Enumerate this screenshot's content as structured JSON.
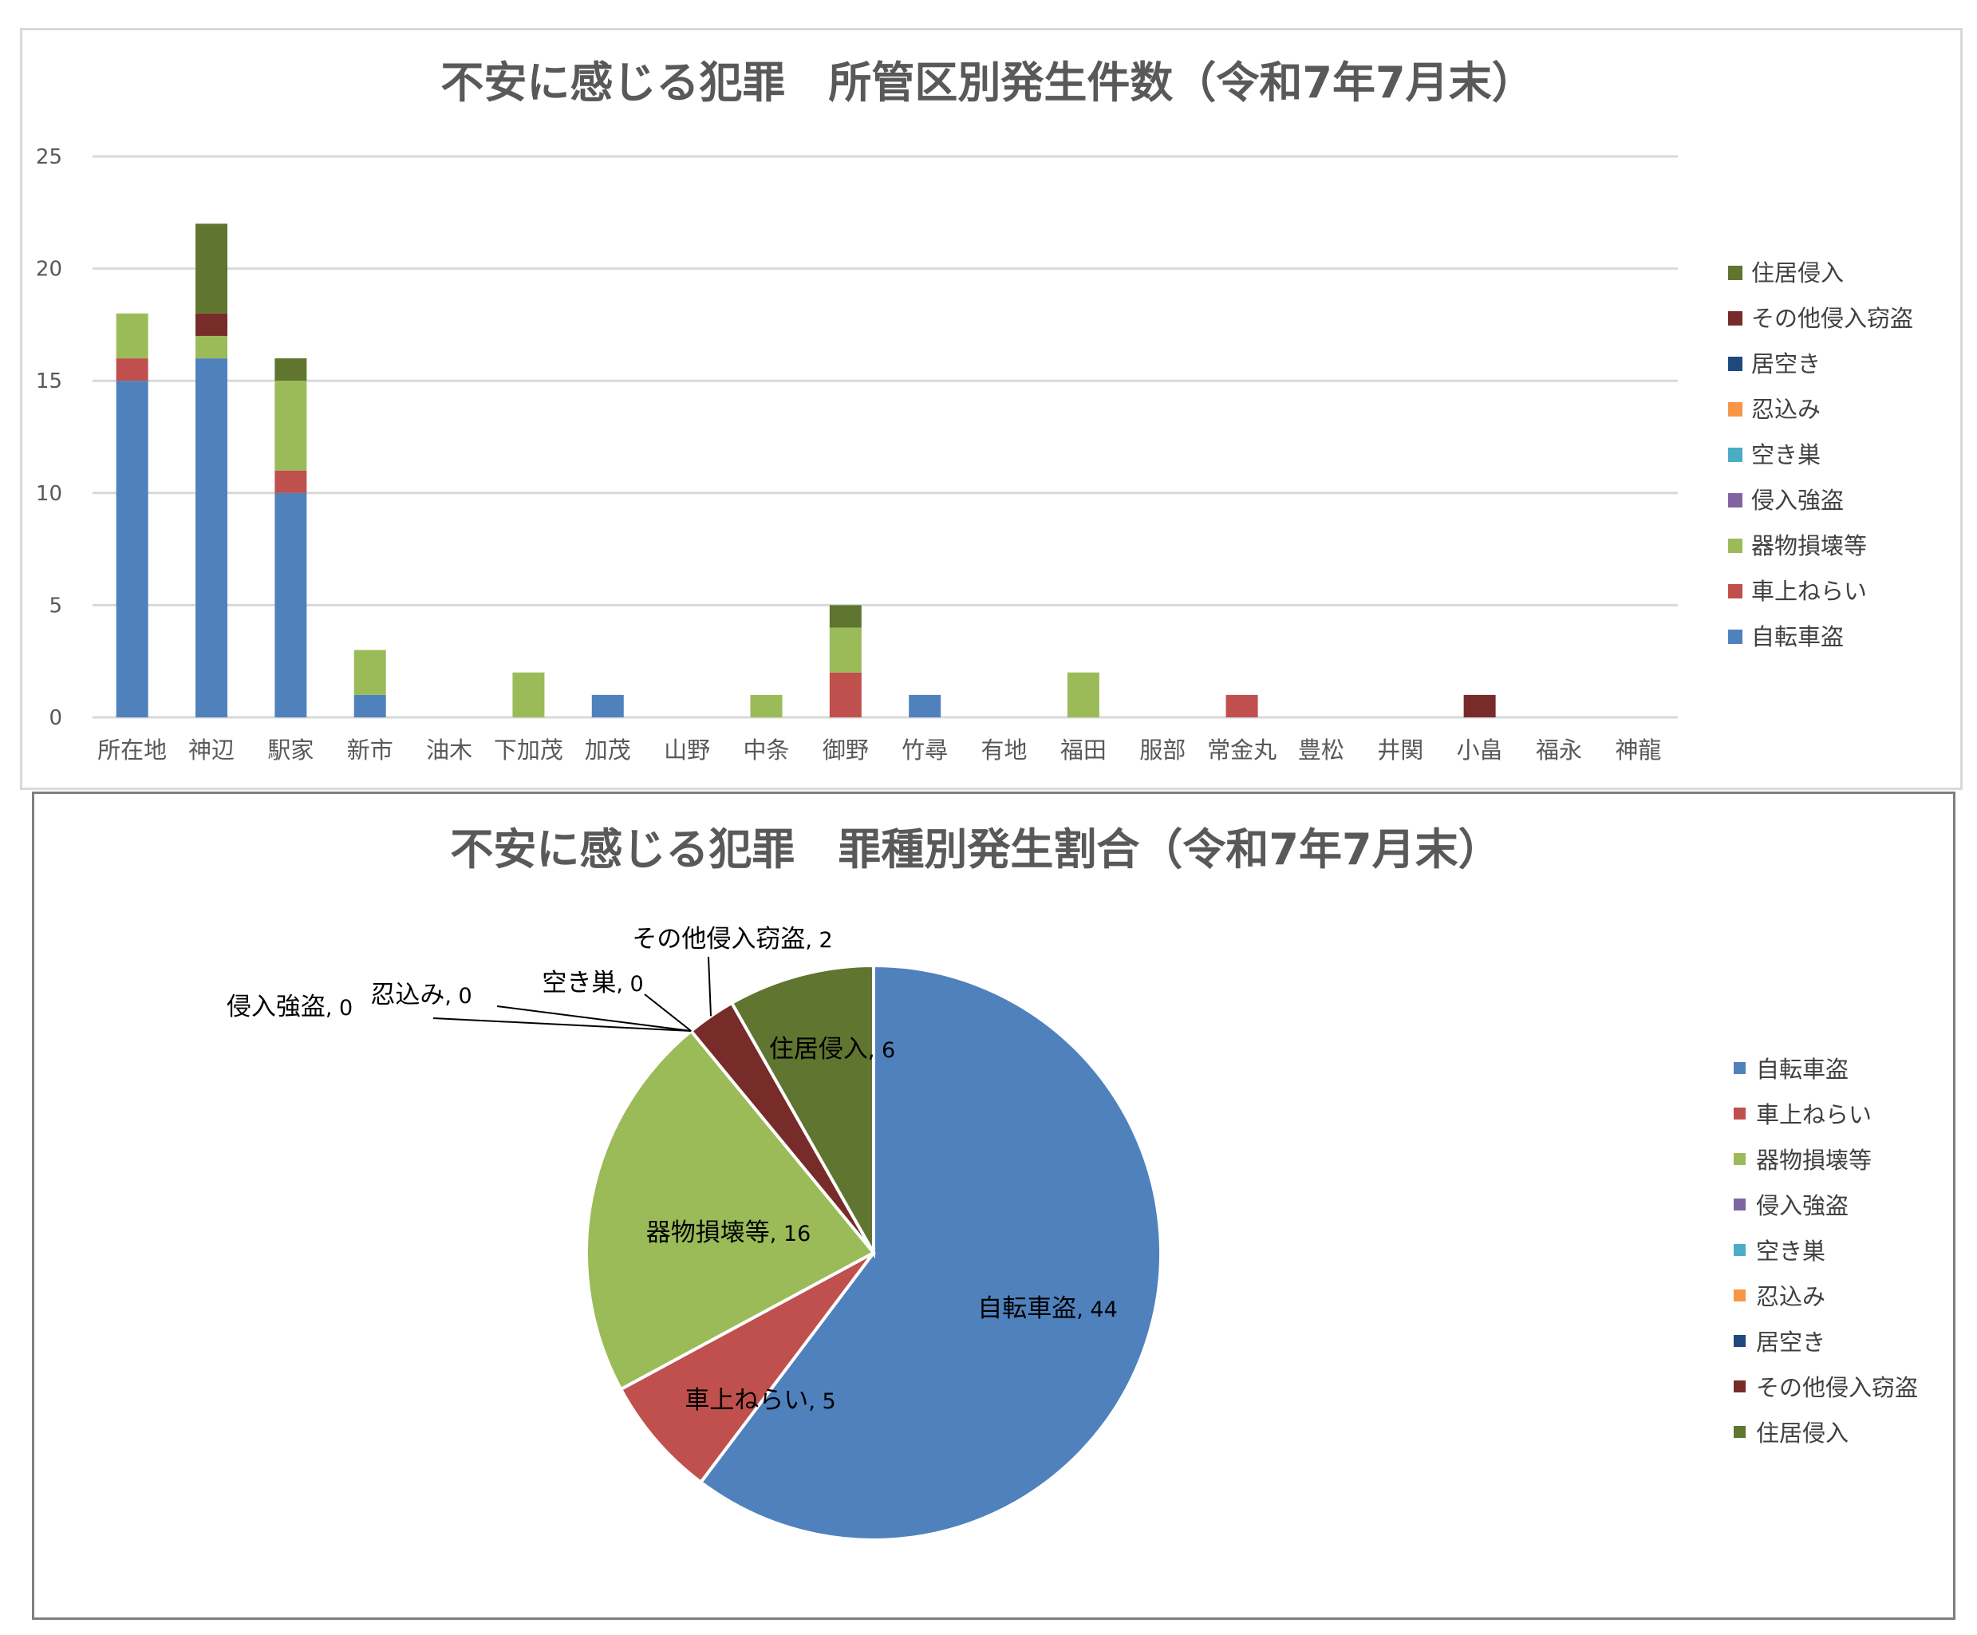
{
  "chart_data": [
    {
      "type": "bar",
      "stacked": true,
      "title": "不安に感じる犯罪　所管区別発生件数（令和7年7月末）",
      "xlabel": "",
      "ylabel": "",
      "ylim": [
        0,
        25
      ],
      "yticks": [
        0,
        5,
        10,
        15,
        20,
        25
      ],
      "grid": true,
      "legend_position": "right",
      "categories": [
        "所在地",
        "神辺",
        "駅家",
        "新市",
        "油木",
        "下加茂",
        "加茂",
        "山野",
        "中条",
        "御野",
        "竹尋",
        "有地",
        "福田",
        "服部",
        "常金丸",
        "豊松",
        "井関",
        "小畠",
        "福永",
        "神龍"
      ],
      "series": [
        {
          "name": "自転車盗",
          "color": "#4F81BD",
          "values": [
            15,
            16,
            10,
            1,
            0,
            0,
            1,
            0,
            0,
            0,
            1,
            0,
            0,
            0,
            0,
            0,
            0,
            0,
            0,
            0
          ]
        },
        {
          "name": "車上ねらい",
          "color": "#C0504D",
          "values": [
            1,
            0,
            1,
            0,
            0,
            0,
            0,
            0,
            0,
            2,
            0,
            0,
            0,
            0,
            1,
            0,
            0,
            0,
            0,
            0
          ]
        },
        {
          "name": "器物損壊等",
          "color": "#9BBB59",
          "values": [
            2,
            1,
            4,
            2,
            0,
            2,
            0,
            0,
            1,
            2,
            0,
            0,
            2,
            0,
            0,
            0,
            0,
            0,
            0,
            0
          ]
        },
        {
          "name": "侵入強盗",
          "color": "#8064A2",
          "values": [
            0,
            0,
            0,
            0,
            0,
            0,
            0,
            0,
            0,
            0,
            0,
            0,
            0,
            0,
            0,
            0,
            0,
            0,
            0,
            0
          ]
        },
        {
          "name": "空き巣",
          "color": "#4BACC6",
          "values": [
            0,
            0,
            0,
            0,
            0,
            0,
            0,
            0,
            0,
            0,
            0,
            0,
            0,
            0,
            0,
            0,
            0,
            0,
            0,
            0
          ]
        },
        {
          "name": "忍込み",
          "color": "#F79646",
          "values": [
            0,
            0,
            0,
            0,
            0,
            0,
            0,
            0,
            0,
            0,
            0,
            0,
            0,
            0,
            0,
            0,
            0,
            0,
            0,
            0
          ]
        },
        {
          "name": "居空き",
          "color": "#1F497D",
          "values": [
            0,
            0,
            0,
            0,
            0,
            0,
            0,
            0,
            0,
            0,
            0,
            0,
            0,
            0,
            0,
            0,
            0,
            0,
            0,
            0
          ]
        },
        {
          "name": "その他侵入窃盗",
          "color": "#772C2A",
          "values": [
            0,
            1,
            0,
            0,
            0,
            0,
            0,
            0,
            0,
            0,
            0,
            0,
            0,
            0,
            0,
            0,
            0,
            1,
            0,
            0
          ]
        },
        {
          "name": "住居侵入",
          "color": "#5F7530",
          "values": [
            0,
            4,
            1,
            0,
            0,
            0,
            0,
            0,
            0,
            1,
            0,
            0,
            0,
            0,
            0,
            0,
            0,
            0,
            0,
            0
          ]
        }
      ]
    },
    {
      "type": "pie",
      "title": "不安に感じる犯罪　罪種別発生割合（令和7年7月末）",
      "legend_position": "right",
      "slices": [
        {
          "name": "自転車盗",
          "value": 44,
          "color": "#4F81BD"
        },
        {
          "name": "車上ねらい",
          "value": 5,
          "color": "#C0504D"
        },
        {
          "name": "器物損壊等",
          "value": 16,
          "color": "#9BBB59"
        },
        {
          "name": "侵入強盗",
          "value": 0,
          "color": "#8064A2"
        },
        {
          "name": "空き巣",
          "value": 0,
          "color": "#4BACC6"
        },
        {
          "name": "忍込み",
          "value": 0,
          "color": "#F79646"
        },
        {
          "name": "居空き",
          "value": 0,
          "color": "#1F497D"
        },
        {
          "name": "その他侵入窃盗",
          "value": 2,
          "color": "#772C2A"
        },
        {
          "name": "住居侵入",
          "value": 6,
          "color": "#5F7530"
        }
      ]
    }
  ]
}
